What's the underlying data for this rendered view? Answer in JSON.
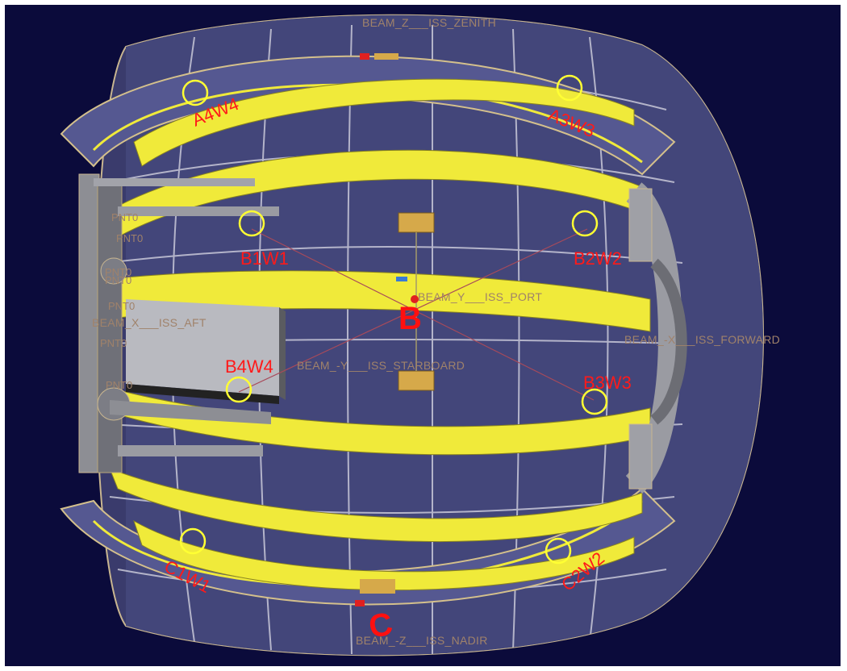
{
  "viewer": {
    "beams": {
      "zenith": "BEAM_Z___ISS_ZENITH",
      "nadir": "BEAM_-Z___ISS_NADIR",
      "port": "BEAM_Y___ISS_PORT",
      "starboard": "BEAM_-Y___ISS_STARBOARD",
      "aft": "BEAM_X___ISS_AFT",
      "forward": "BEAM_-X___ISS_FORWARD"
    },
    "points": [
      "PNT0",
      "PNT0",
      "PNT0",
      "PNT0",
      "PNT0",
      "PNT0",
      "PNT0"
    ],
    "sensors": [
      "A4W4",
      "A3W3",
      "B1W1",
      "B2W2",
      "B4W4",
      "B3W3",
      "C1W1",
      "C2W2"
    ],
    "zones": {
      "b": "B",
      "c": "C"
    },
    "colors": {
      "background": "#0b0b3b",
      "band": "#f0ea3a",
      "sensor_ring": "#ffff33",
      "label": "#ff1a1a",
      "reference": "#a0826a"
    }
  }
}
